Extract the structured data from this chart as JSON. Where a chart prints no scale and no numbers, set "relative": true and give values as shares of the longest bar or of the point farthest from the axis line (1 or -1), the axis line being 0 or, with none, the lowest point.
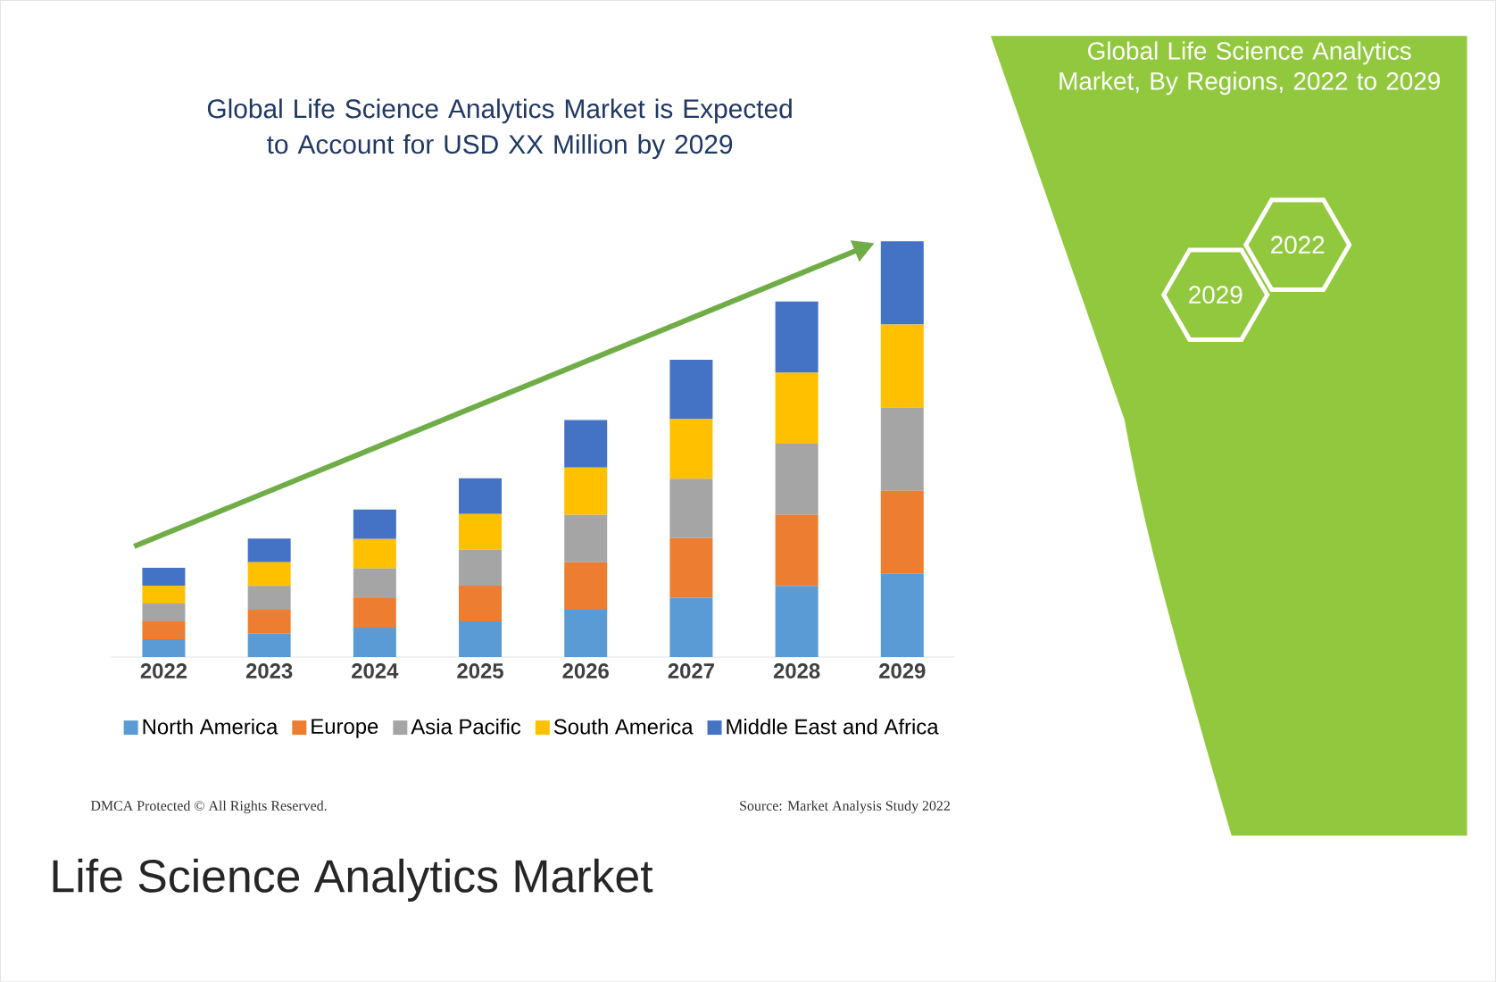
{
  "chart_data": {
    "type": "bar",
    "title": "Global Life Science Analytics Market is Expected to Account for USD XX Million by 2029",
    "subtitle": "Global Life Science Analytics Market, By Regions, 2022 to 2029",
    "categories": [
      "2022",
      "2023",
      "2024",
      "2025",
      "2026",
      "2027",
      "2028",
      "2029"
    ],
    "stacked": true,
    "relative": true,
    "legend": "bottom",
    "series": [
      {
        "name": "North America",
        "color": "#5b9bd5",
        "values": [
          0.043,
          0.057,
          0.071,
          0.086,
          0.114,
          0.143,
          0.171,
          0.2
        ]
      },
      {
        "name": "Europe",
        "color": "#ed7d31",
        "values": [
          0.043,
          0.057,
          0.071,
          0.086,
          0.114,
          0.143,
          0.171,
          0.2
        ]
      },
      {
        "name": "Asia Pacific",
        "color": "#a5a5a5",
        "values": [
          0.043,
          0.057,
          0.071,
          0.086,
          0.114,
          0.143,
          0.171,
          0.2
        ]
      },
      {
        "name": "South America",
        "color": "#ffc000",
        "values": [
          0.043,
          0.057,
          0.071,
          0.086,
          0.114,
          0.143,
          0.171,
          0.2
        ]
      },
      {
        "name": "Middle East and Africa",
        "color": "#4472c4",
        "values": [
          0.043,
          0.057,
          0.071,
          0.086,
          0.114,
          0.143,
          0.171,
          0.2
        ]
      }
    ],
    "annotations": [
      "2022",
      "2029",
      "DMCA Protected © All Rights Reserved.",
      "Source: Market Analysis Study 2022",
      "Life Science Analytics Market"
    ]
  }
}
